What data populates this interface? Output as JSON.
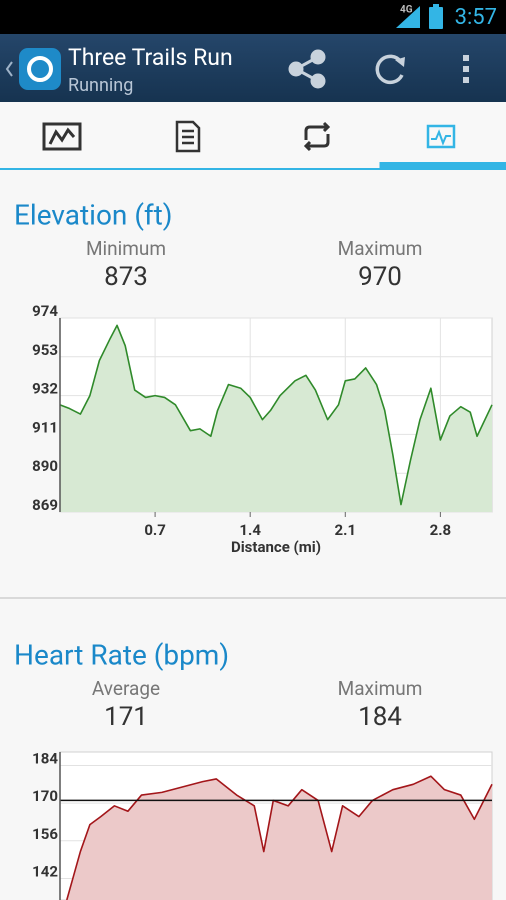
{
  "status_bar": {
    "network": "4G",
    "time": "3:57"
  },
  "action_bar": {
    "title": "Three Trails Run",
    "subtitle": "Running"
  },
  "tabs": {
    "selected": 3
  },
  "chart_data": [
    {
      "type": "area",
      "title": "Elevation (ft)",
      "stats": [
        {
          "label": "Minimum",
          "value": 873
        },
        {
          "label": "Maximum",
          "value": 970
        }
      ],
      "x_label": "Distance (mi)",
      "x": [
        0,
        0.07,
        0.15,
        0.22,
        0.29,
        0.37,
        0.42,
        0.48,
        0.55,
        0.63,
        0.7,
        0.77,
        0.85,
        0.96,
        1.03,
        1.11,
        1.16,
        1.24,
        1.33,
        1.4,
        1.49,
        1.55,
        1.62,
        1.73,
        1.81,
        1.88,
        1.97,
        2.05,
        2.1,
        2.17,
        2.25,
        2.33,
        2.39,
        2.45,
        2.51,
        2.58,
        2.65,
        2.73,
        2.8,
        2.87,
        2.95,
        3.02,
        3.07,
        3.18
      ],
      "values": [
        927,
        925,
        922,
        932,
        951,
        963,
        970,
        959,
        935,
        931,
        932,
        931,
        927,
        913,
        914,
        910,
        924,
        938,
        936,
        931,
        919,
        924,
        932,
        940,
        943,
        935,
        919,
        927,
        940,
        941,
        947,
        938,
        924,
        900,
        873,
        897,
        919,
        936,
        908,
        921,
        926,
        923,
        910,
        927
      ],
      "xlim": [
        0,
        3.18
      ],
      "ylim": [
        869,
        974
      ],
      "xticks": [
        0.7,
        1.4,
        2.1,
        2.8
      ],
      "yticks": [
        869,
        890,
        911,
        932,
        953,
        974
      ],
      "color": "#2f8a2a",
      "fill": "#d7e9d3",
      "grid": true
    },
    {
      "type": "area",
      "title": "Heart Rate (bpm)",
      "stats": [
        {
          "label": "Average",
          "value": 171
        },
        {
          "label": "Maximum",
          "value": 184
        }
      ],
      "x": [
        0.05,
        0.1,
        0.15,
        0.22,
        0.3,
        0.4,
        0.5,
        0.6,
        0.75,
        0.9,
        1.05,
        1.15,
        1.3,
        1.43,
        1.5,
        1.57,
        1.68,
        1.78,
        1.9,
        2.0,
        2.08,
        2.2,
        2.3,
        2.45,
        2.6,
        2.73,
        2.83,
        2.95,
        3.05,
        3.18
      ],
      "values": [
        134,
        143,
        152,
        162,
        165,
        169,
        167,
        173,
        174,
        176,
        178,
        179,
        173,
        169,
        152,
        171,
        169,
        175,
        171,
        152,
        169,
        165,
        171,
        175,
        177,
        180,
        175,
        173,
        164,
        177
      ],
      "xlim": [
        0,
        3.18
      ],
      "ylim": [
        134,
        189
      ],
      "yticks": [
        142,
        156,
        170,
        184
      ],
      "color": "#a3161a",
      "fill": "#ecc9c9",
      "grid": true,
      "average_line": true
    }
  ]
}
